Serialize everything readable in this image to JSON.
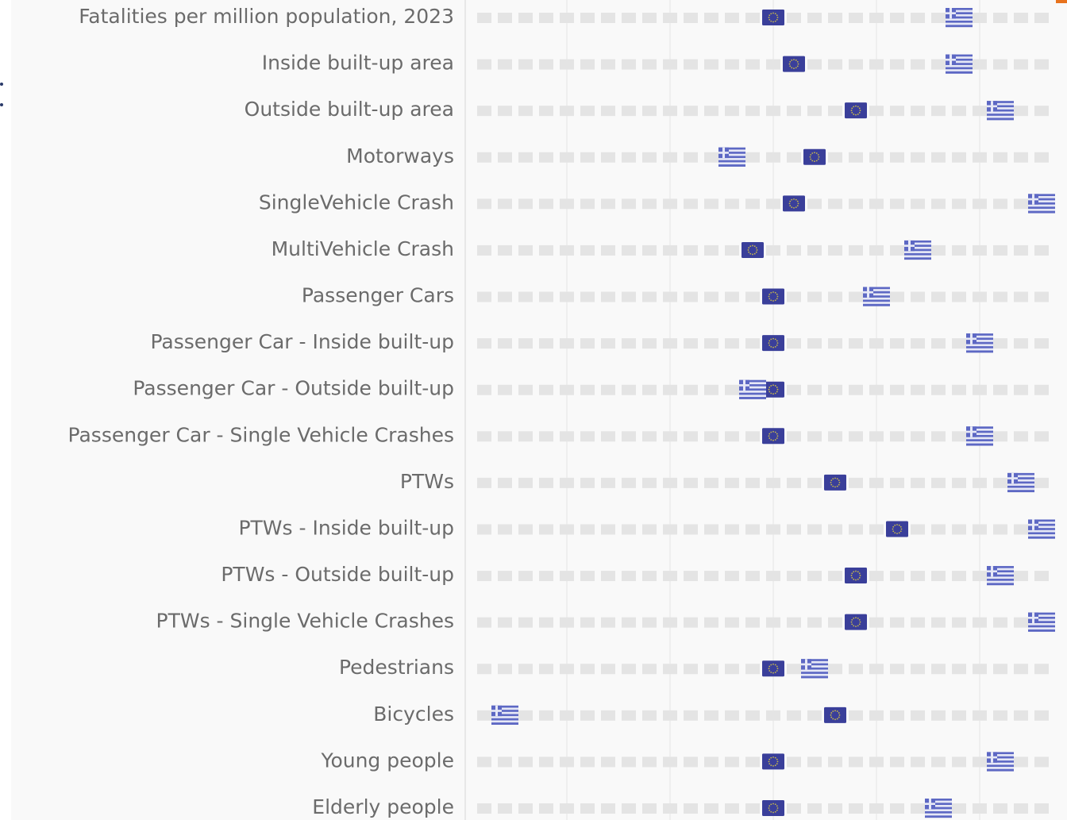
{
  "chart_data": {
    "type": "rank-dot",
    "categories": [
      "Fatalities per million population, 2023",
      "Inside built-up area",
      "Outside built-up area",
      "Motorways",
      "SingleVehicle Crash",
      "MultiVehicle Crash",
      "Passenger Cars",
      "Passenger Car - Inside built-up",
      "Passenger Car - Outside built-up",
      "Passenger Car - Single Vehicle Crashes",
      "PTWs",
      "PTWs - Inside built-up",
      "PTWs - Outside built-up",
      "PTWs - Single Vehicle Crashes",
      "Pedestrians",
      "Bicycles",
      "Young people",
      "Elderly people"
    ],
    "series": [
      {
        "color": "#3a3f9a",
        "values": [
          15,
          16,
          19,
          17,
          16,
          14,
          15,
          15,
          15,
          15,
          18,
          21,
          19,
          19,
          15,
          18,
          15,
          15
        ]
      },
      {
        "color": "#5d68c4",
        "values": [
          24,
          24,
          26,
          13,
          28,
          22,
          20,
          25,
          14,
          25,
          27,
          28,
          26,
          28,
          17,
          2,
          26,
          23
        ]
      }
    ],
    "xlim": [
      1,
      28
    ],
    "xticks": [
      5,
      10,
      15,
      20,
      25
    ],
    "grid": true
  }
}
